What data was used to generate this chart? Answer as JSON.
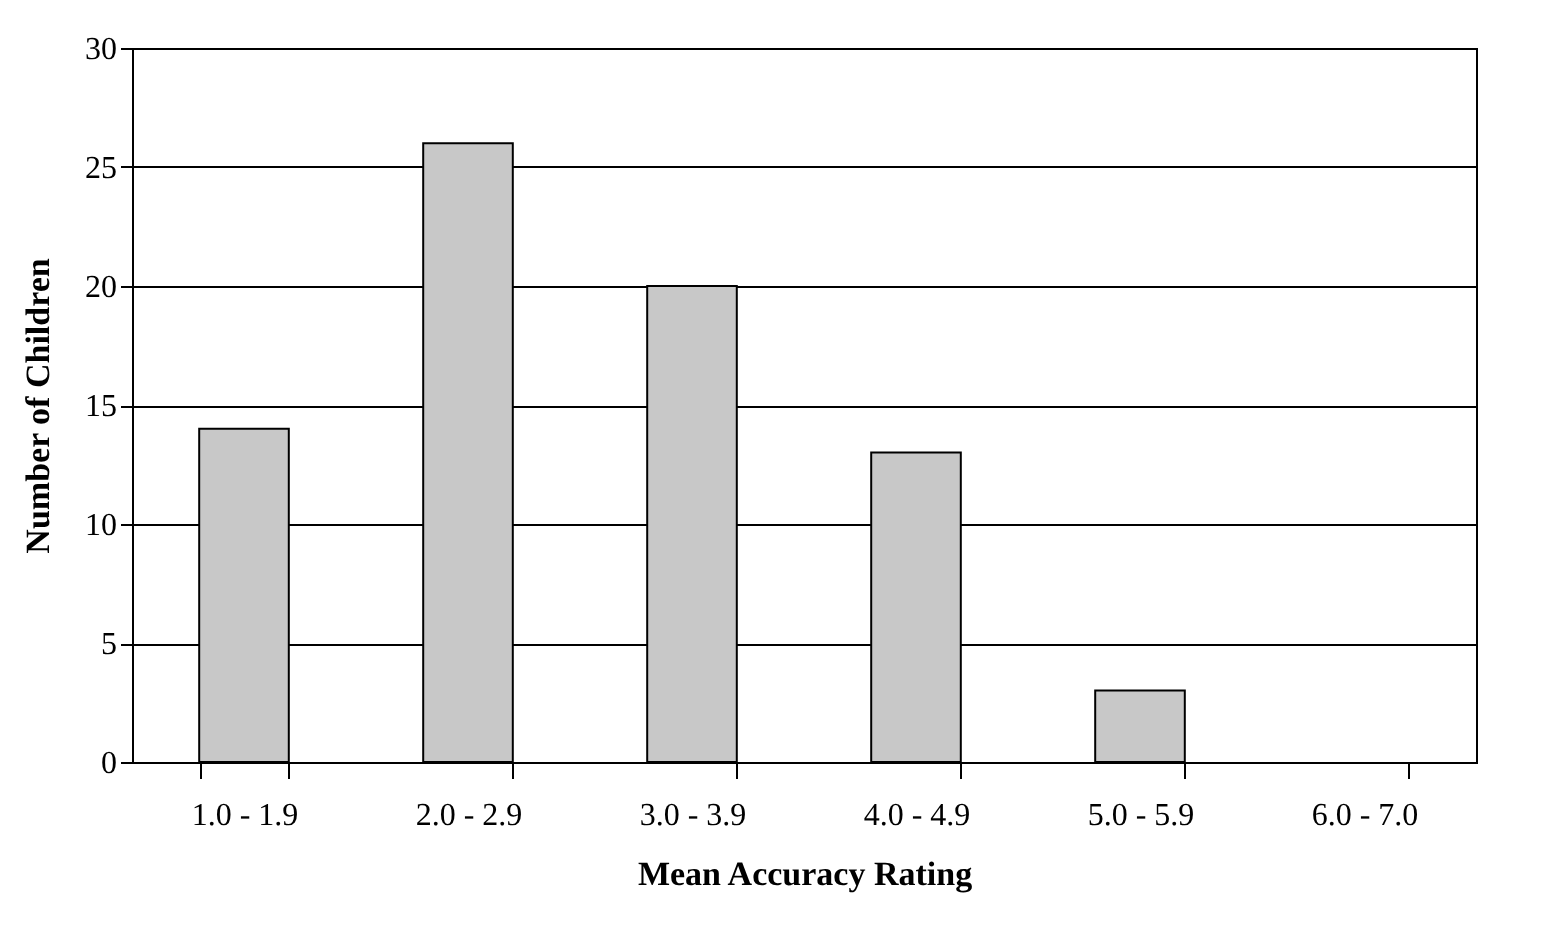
{
  "chart_data": {
    "type": "bar",
    "xlabel": "Mean Accuracy Rating",
    "ylabel": "Number of Children",
    "categories": [
      "1.0 - 1.9",
      "2.0 - 2.9",
      "3.0 - 3.9",
      "4.0 - 4.9",
      "5.0 - 5.9",
      "6.0 - 7.0"
    ],
    "values": [
      14,
      26,
      20,
      13,
      3,
      0
    ],
    "color": "#c8c8c8",
    "ylim": [
      0,
      30
    ],
    "yticks": [
      0,
      5,
      10,
      15,
      20,
      25,
      30
    ],
    "grid": "y"
  }
}
